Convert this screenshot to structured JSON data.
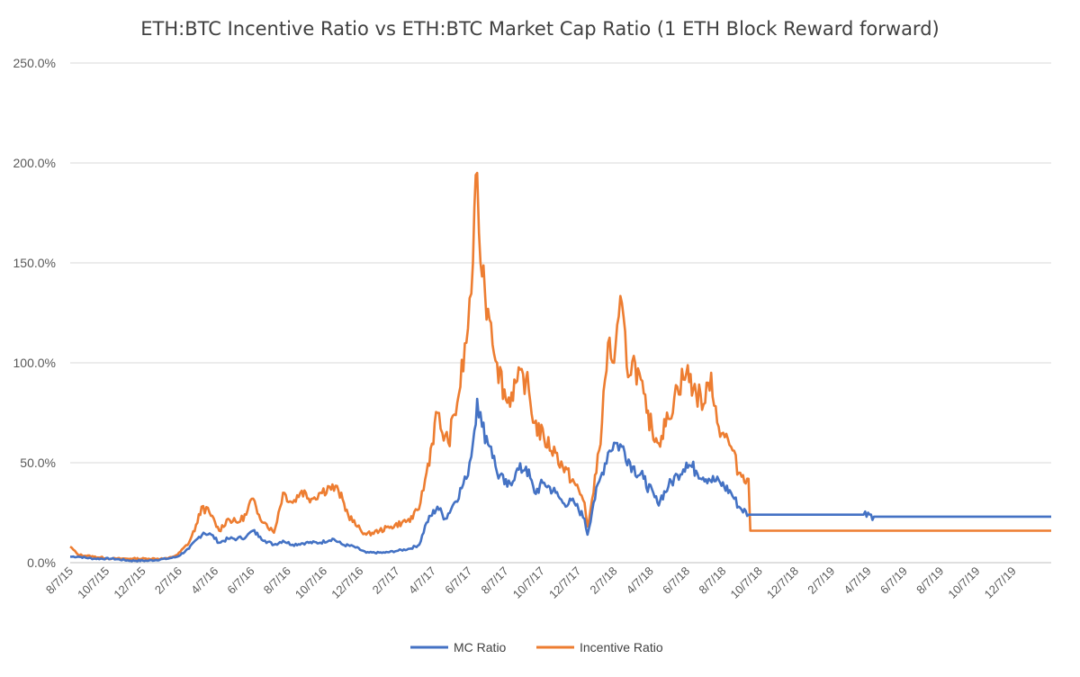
{
  "chart_data": {
    "type": "line",
    "title": "ETH:BTC Incentive Ratio vs ETH:BTC Market Cap Ratio (1 ETH Block Reward forward)",
    "xlabel": "",
    "ylabel": "",
    "ylim": [
      0,
      250
    ],
    "y_ticks": [
      {
        "value": 0,
        "label": "0.0%"
      },
      {
        "value": 50,
        "label": "50.0%"
      },
      {
        "value": 100,
        "label": "100.0%"
      },
      {
        "value": 150,
        "label": "150.0%"
      },
      {
        "value": 200,
        "label": "200.0%"
      },
      {
        "value": 250,
        "label": "250.0%"
      }
    ],
    "x_ticks": [
      "8/7/15",
      "10/7/15",
      "12/7/15",
      "2/7/16",
      "4/7/16",
      "6/7/16",
      "8/7/16",
      "10/7/16",
      "12/7/16",
      "2/7/17",
      "4/7/17",
      "6/7/17",
      "8/7/17",
      "10/7/17",
      "12/7/17",
      "2/7/18",
      "4/7/18",
      "6/7/18",
      "8/7/18",
      "10/7/18",
      "12/7/18",
      "2/7/19",
      "4/7/19",
      "6/7/19",
      "8/7/19",
      "10/7/19",
      "12/7/19"
    ],
    "xlim": [
      "2015-08-07",
      "2020-01-20"
    ],
    "grid": "horizontal",
    "legend": "bottom",
    "series": [
      {
        "name": "MC Ratio",
        "color": "#4472C4",
        "points": [
          [
            "2015-08-07",
            3
          ],
          [
            "2015-08-20",
            3
          ],
          [
            "2015-09-15",
            2
          ],
          [
            "2015-10-15",
            2
          ],
          [
            "2015-11-15",
            1
          ],
          [
            "2015-12-15",
            1
          ],
          [
            "2016-01-15",
            2
          ],
          [
            "2016-02-01",
            3
          ],
          [
            "2016-02-20",
            7
          ],
          [
            "2016-03-05",
            12
          ],
          [
            "2016-03-15",
            15
          ],
          [
            "2016-03-28",
            14
          ],
          [
            "2016-04-10",
            10
          ],
          [
            "2016-04-25",
            12
          ],
          [
            "2016-05-10",
            12
          ],
          [
            "2016-05-25",
            13
          ],
          [
            "2016-06-05",
            16
          ],
          [
            "2016-06-17",
            13
          ],
          [
            "2016-06-25",
            11
          ],
          [
            "2016-07-10",
            9
          ],
          [
            "2016-07-25",
            11
          ],
          [
            "2016-08-10",
            9
          ],
          [
            "2016-09-01",
            10
          ],
          [
            "2016-09-25",
            10
          ],
          [
            "2016-10-15",
            12
          ],
          [
            "2016-11-01",
            9
          ],
          [
            "2016-11-20",
            8
          ],
          [
            "2016-12-10",
            5
          ],
          [
            "2017-01-10",
            5
          ],
          [
            "2017-02-01",
            6
          ],
          [
            "2017-02-20",
            7
          ],
          [
            "2017-03-08",
            9
          ],
          [
            "2017-03-20",
            20
          ],
          [
            "2017-04-07",
            28
          ],
          [
            "2017-04-20",
            22
          ],
          [
            "2017-05-05",
            30
          ],
          [
            "2017-05-25",
            42
          ],
          [
            "2017-06-05",
            60
          ],
          [
            "2017-06-12",
            82
          ],
          [
            "2017-06-20",
            68
          ],
          [
            "2017-07-05",
            58
          ],
          [
            "2017-07-15",
            45
          ],
          [
            "2017-08-01",
            38
          ],
          [
            "2017-08-15",
            45
          ],
          [
            "2017-09-01",
            48
          ],
          [
            "2017-09-15",
            35
          ],
          [
            "2017-10-01",
            40
          ],
          [
            "2017-10-20",
            35
          ],
          [
            "2017-11-01",
            30
          ],
          [
            "2017-11-20",
            30
          ],
          [
            "2017-12-07",
            22
          ],
          [
            "2017-12-12",
            14
          ],
          [
            "2017-12-22",
            30
          ],
          [
            "2018-01-05",
            45
          ],
          [
            "2018-01-15",
            55
          ],
          [
            "2018-01-25",
            60
          ],
          [
            "2018-02-07",
            58
          ],
          [
            "2018-02-25",
            48
          ],
          [
            "2018-03-15",
            42
          ],
          [
            "2018-04-07",
            30
          ],
          [
            "2018-04-25",
            38
          ],
          [
            "2018-05-10",
            44
          ],
          [
            "2018-05-25",
            50
          ],
          [
            "2018-06-10",
            46
          ],
          [
            "2018-07-01",
            42
          ],
          [
            "2018-07-20",
            40
          ],
          [
            "2018-08-07",
            35
          ],
          [
            "2018-08-20",
            28
          ],
          [
            "2018-09-05",
            24
          ],
          [
            "2018-09-12",
            24
          ],
          [
            "2018-12-01",
            24
          ],
          [
            "2019-03-15",
            24
          ],
          [
            "2019-04-01",
            23
          ],
          [
            "2020-01-20",
            23
          ]
        ]
      },
      {
        "name": "Incentive Ratio",
        "color": "#ED7D31",
        "points": [
          [
            "2015-08-07",
            8
          ],
          [
            "2015-08-20",
            4
          ],
          [
            "2015-09-15",
            3
          ],
          [
            "2015-10-15",
            2
          ],
          [
            "2015-11-15",
            2
          ],
          [
            "2015-12-15",
            2
          ],
          [
            "2016-01-15",
            2
          ],
          [
            "2016-02-01",
            4
          ],
          [
            "2016-02-20",
            10
          ],
          [
            "2016-03-05",
            20
          ],
          [
            "2016-03-12",
            28
          ],
          [
            "2016-03-25",
            25
          ],
          [
            "2016-04-10",
            16
          ],
          [
            "2016-04-25",
            22
          ],
          [
            "2016-05-10",
            20
          ],
          [
            "2016-05-25",
            24
          ],
          [
            "2016-06-03",
            32
          ],
          [
            "2016-06-15",
            24
          ],
          [
            "2016-06-25",
            20
          ],
          [
            "2016-07-10",
            15
          ],
          [
            "2016-07-25",
            35
          ],
          [
            "2016-08-10",
            30
          ],
          [
            "2016-08-25",
            36
          ],
          [
            "2016-09-10",
            32
          ],
          [
            "2016-09-25",
            35
          ],
          [
            "2016-10-10",
            38
          ],
          [
            "2016-10-25",
            36
          ],
          [
            "2016-11-10",
            24
          ],
          [
            "2016-11-25",
            18
          ],
          [
            "2016-12-10",
            14
          ],
          [
            "2017-01-01",
            16
          ],
          [
            "2017-01-20",
            18
          ],
          [
            "2017-02-07",
            20
          ],
          [
            "2017-02-25",
            22
          ],
          [
            "2017-03-10",
            30
          ],
          [
            "2017-03-20",
            45
          ],
          [
            "2017-04-07",
            75
          ],
          [
            "2017-04-15",
            65
          ],
          [
            "2017-04-25",
            60
          ],
          [
            "2017-05-10",
            80
          ],
          [
            "2017-05-25",
            110
          ],
          [
            "2017-06-05",
            150
          ],
          [
            "2017-06-12",
            195
          ],
          [
            "2017-06-15",
            165
          ],
          [
            "2017-06-25",
            135
          ],
          [
            "2017-07-05",
            120
          ],
          [
            "2017-07-15",
            100
          ],
          [
            "2017-08-01",
            80
          ],
          [
            "2017-08-15",
            90
          ],
          [
            "2017-09-01",
            92
          ],
          [
            "2017-09-15",
            70
          ],
          [
            "2017-10-01",
            62
          ],
          [
            "2017-10-20",
            55
          ],
          [
            "2017-11-01",
            48
          ],
          [
            "2017-11-20",
            40
          ],
          [
            "2017-12-07",
            30
          ],
          [
            "2017-12-12",
            18
          ],
          [
            "2017-12-22",
            35
          ],
          [
            "2018-01-05",
            70
          ],
          [
            "2018-01-15",
            110
          ],
          [
            "2018-01-25",
            100
          ],
          [
            "2018-02-07",
            130
          ],
          [
            "2018-02-15",
            98
          ],
          [
            "2018-03-01",
            100
          ],
          [
            "2018-03-20",
            75
          ],
          [
            "2018-04-07",
            60
          ],
          [
            "2018-04-25",
            72
          ],
          [
            "2018-05-10",
            88
          ],
          [
            "2018-05-25",
            95
          ],
          [
            "2018-06-10",
            85
          ],
          [
            "2018-06-25",
            80
          ],
          [
            "2018-07-05",
            95
          ],
          [
            "2018-07-15",
            70
          ],
          [
            "2018-07-25",
            65
          ],
          [
            "2018-08-07",
            58
          ],
          [
            "2018-08-20",
            45
          ],
          [
            "2018-09-05",
            42
          ],
          [
            "2018-09-08",
            16
          ],
          [
            "2020-01-20",
            16
          ]
        ]
      }
    ]
  }
}
